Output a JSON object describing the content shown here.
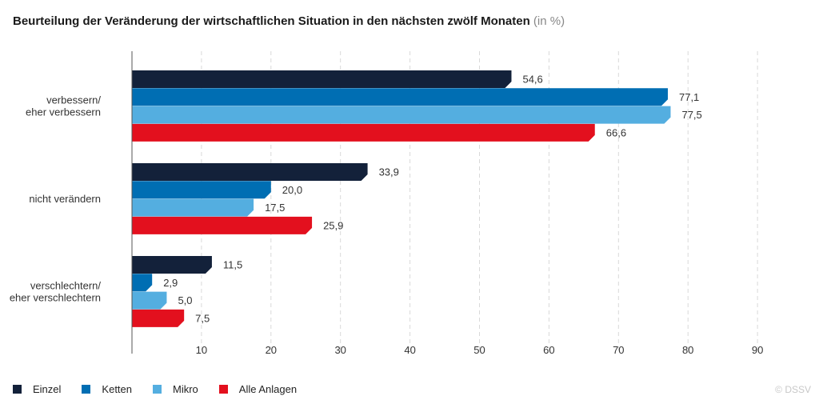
{
  "title": "Beurteilung der Veränderung der wirtschaftlichen Situation in den nächsten zwölf Monaten",
  "unit": "(in %)",
  "credit": "© DSSV",
  "chart_data": {
    "type": "bar",
    "orientation": "horizontal",
    "categories": [
      [
        "verbessern/",
        "eher verbessern"
      ],
      [
        "nicht verändern"
      ],
      [
        "verschlechtern/",
        "eher verschlechtern"
      ]
    ],
    "series": [
      {
        "name": "Einzel",
        "color": "#13213a",
        "values": [
          54.6,
          33.9,
          11.5
        ],
        "labels": [
          "54,6",
          "33,9",
          "11,5"
        ]
      },
      {
        "name": "Ketten",
        "color": "#006eb3",
        "values": [
          77.1,
          20.0,
          2.9
        ],
        "labels": [
          "77,1",
          "20,0",
          "2,9"
        ]
      },
      {
        "name": "Mikro",
        "color": "#54aee0",
        "values": [
          77.5,
          17.5,
          5.0
        ],
        "labels": [
          "77,5",
          "17,5",
          "5,0"
        ]
      },
      {
        "name": "Alle Anlagen",
        "color": "#e3101e",
        "values": [
          66.6,
          25.9,
          7.5
        ],
        "labels": [
          "66,6",
          "25,9",
          "7,5"
        ]
      }
    ],
    "xlim": [
      0,
      90
    ],
    "xticks": [
      10,
      20,
      30,
      40,
      50,
      60,
      70,
      80,
      90
    ],
    "grid": true,
    "legend_position": "bottom-left"
  }
}
